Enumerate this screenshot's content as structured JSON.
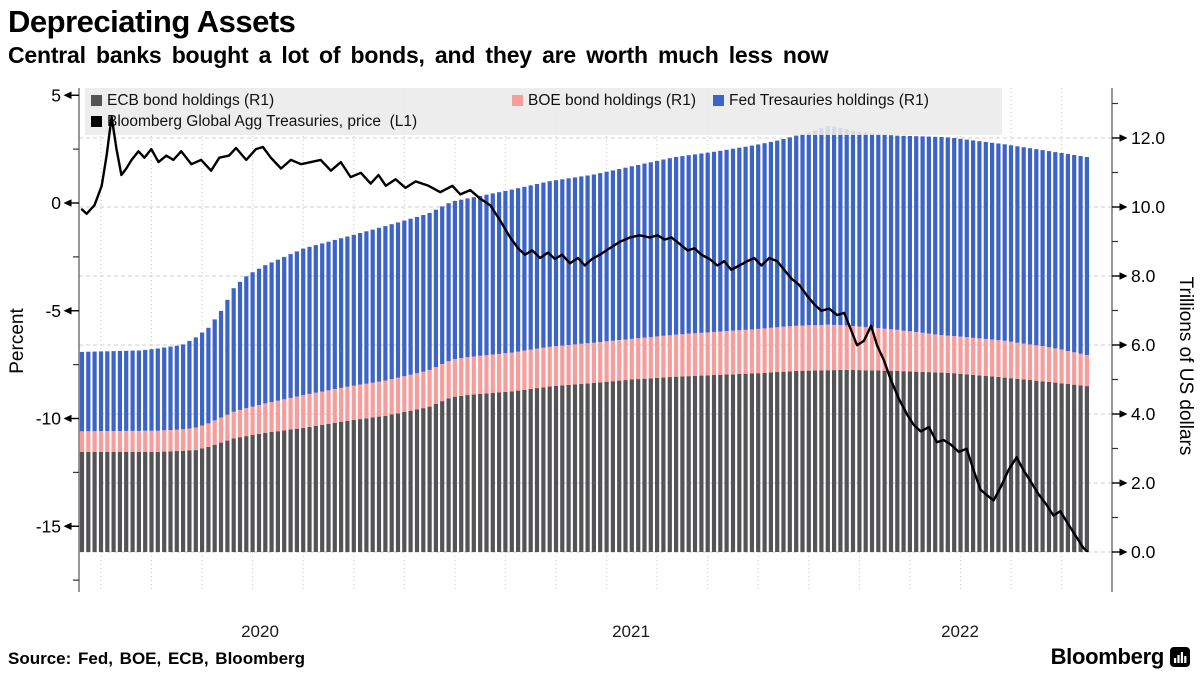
{
  "header": {
    "title": "Depreciating Assets",
    "subtitle": "Central banks bought a lot of bonds, and they are worth much less now"
  },
  "footer": {
    "source": "Source: Fed, BOE, ECB, Bloomberg",
    "brand": "Bloomberg",
    "brand_icon": "bar-chart-glyph"
  },
  "legend": {
    "items": [
      {
        "label": "ECB bond holdings (R1)",
        "color": "#545457",
        "kind": "bar"
      },
      {
        "label": "BOE bond holdings (R1)",
        "color": "#F79E9D",
        "kind": "bar"
      },
      {
        "label": "Fed Tresauries holdings (R1)",
        "color": "#3C63C7",
        "kind": "bar"
      },
      {
        "label": "Bloomberg Global Agg Treasuries, price  (L1)",
        "color": "#000000",
        "kind": "line"
      }
    ]
  },
  "chart_data": {
    "type": "combo-stacked-bar-and-line",
    "bar_frequency": "weekly",
    "time_range": {
      "start_decimal_year": 2019.825,
      "end_decimal_year": 2022.885,
      "start": "Nov 2019",
      "end": "Nov 2022"
    },
    "x_axis": {
      "labels": [
        "2020",
        "2021",
        "2022"
      ]
    },
    "left_axis": {
      "title": "Percent",
      "ticks": [
        5,
        0,
        -5,
        -10,
        -15
      ],
      "minor_ticks": [
        2.5,
        -2.5,
        -7.5,
        -12.5,
        -17.5
      ],
      "range": [
        -18.5,
        5.4
      ]
    },
    "right_axis": {
      "title": "Trillions of US dollars",
      "ticks": [
        12,
        10,
        8,
        6,
        4,
        2,
        0
      ],
      "minor_ticks": [
        13,
        11,
        9,
        7,
        5,
        3,
        1
      ],
      "tick_format": "0.0",
      "range": [
        0,
        13.45
      ]
    },
    "grid": {
      "horizontal_at_right_ticks": true,
      "vertical_every_n_bars": 8,
      "color": "#cfcfcf"
    },
    "bar_series": [
      {
        "name": "ECB bond holdings (R1)",
        "axis": "R1",
        "color": "#545457",
        "unit": "trillion USD",
        "keyframes": [
          [
            2019.825,
            2.9
          ],
          [
            2020.05,
            2.9
          ],
          [
            2020.17,
            2.95
          ],
          [
            2020.21,
            3.05
          ],
          [
            2020.29,
            3.3
          ],
          [
            2020.38,
            3.45
          ],
          [
            2020.5,
            3.6
          ],
          [
            2020.63,
            3.8
          ],
          [
            2020.75,
            3.95
          ],
          [
            2020.88,
            4.2
          ],
          [
            2020.95,
            4.49
          ],
          [
            2021.0,
            4.55
          ],
          [
            2021.13,
            4.65
          ],
          [
            2021.25,
            4.8
          ],
          [
            2021.38,
            4.9
          ],
          [
            2021.5,
            5.0
          ],
          [
            2021.63,
            5.08
          ],
          [
            2021.75,
            5.13
          ],
          [
            2021.88,
            5.18
          ],
          [
            2022.0,
            5.25
          ],
          [
            2022.15,
            5.28
          ],
          [
            2022.3,
            5.25
          ],
          [
            2022.47,
            5.19
          ],
          [
            2022.62,
            5.07
          ],
          [
            2022.77,
            4.93
          ],
          [
            2022.885,
            4.81
          ]
        ]
      },
      {
        "name": "BOE bond holdings (R1)",
        "axis": "R1",
        "color": "#F79E9D",
        "unit": "trillion USD",
        "keyframes": [
          [
            2019.825,
            0.6
          ],
          [
            2020.13,
            0.62
          ],
          [
            2020.21,
            0.68
          ],
          [
            2020.29,
            0.78
          ],
          [
            2020.38,
            0.85
          ],
          [
            2020.5,
            0.95
          ],
          [
            2020.75,
            1.02
          ],
          [
            2021.0,
            1.1
          ],
          [
            2021.25,
            1.15
          ],
          [
            2021.5,
            1.18
          ],
          [
            2021.75,
            1.25
          ],
          [
            2021.95,
            1.3
          ],
          [
            2022.1,
            1.32
          ],
          [
            2022.3,
            1.2
          ],
          [
            2022.45,
            1.08
          ],
          [
            2022.62,
            1.07
          ],
          [
            2022.77,
            1.01
          ],
          [
            2022.885,
            0.9
          ]
        ]
      },
      {
        "name": "Fed Tresauries holdings (R1)",
        "axis": "R1",
        "color": "#3C63C7",
        "unit": "trillion USD",
        "keyframes": [
          [
            2019.825,
            2.3
          ],
          [
            2020.0,
            2.33
          ],
          [
            2020.13,
            2.45
          ],
          [
            2020.21,
            2.77
          ],
          [
            2020.25,
            3.1
          ],
          [
            2020.29,
            3.62
          ],
          [
            2020.33,
            3.85
          ],
          [
            2020.38,
            4.0
          ],
          [
            2020.5,
            4.25
          ],
          [
            2020.63,
            4.35
          ],
          [
            2020.75,
            4.48
          ],
          [
            2020.88,
            4.55
          ],
          [
            2021.0,
            4.6
          ],
          [
            2021.13,
            4.72
          ],
          [
            2021.25,
            4.8
          ],
          [
            2021.38,
            4.87
          ],
          [
            2021.5,
            5.0
          ],
          [
            2021.63,
            5.15
          ],
          [
            2021.75,
            5.22
          ],
          [
            2021.88,
            5.34
          ],
          [
            2021.95,
            5.42
          ],
          [
            2022.04,
            5.59
          ],
          [
            2022.1,
            5.77
          ],
          [
            2022.18,
            5.65
          ],
          [
            2022.3,
            5.62
          ],
          [
            2022.45,
            5.75
          ],
          [
            2022.6,
            5.7
          ],
          [
            2022.77,
            5.68
          ],
          [
            2022.885,
            5.74
          ]
        ]
      }
    ],
    "line_series": {
      "name": "Bloomberg Global Agg Treasuries, price  (L1)",
      "axis": "L1",
      "color": "#000000",
      "unit": "percent",
      "points": [
        [
          2019.825,
          -0.3
        ],
        [
          2019.839,
          -0.5
        ],
        [
          2019.863,
          -0.1
        ],
        [
          2019.885,
          0.8
        ],
        [
          2019.9,
          2.2
        ],
        [
          2019.915,
          4.0
        ],
        [
          2019.93,
          2.5
        ],
        [
          2019.945,
          1.3
        ],
        [
          2019.96,
          1.6
        ],
        [
          2019.976,
          2.0
        ],
        [
          2019.997,
          2.4
        ],
        [
          2020.015,
          2.1
        ],
        [
          2020.036,
          2.5
        ],
        [
          2020.058,
          1.9
        ],
        [
          2020.082,
          2.2
        ],
        [
          2020.103,
          2.0
        ],
        [
          2020.127,
          2.4
        ],
        [
          2020.158,
          1.8
        ],
        [
          2020.188,
          2.0
        ],
        [
          2020.218,
          1.5
        ],
        [
          2020.243,
          2.1
        ],
        [
          2020.273,
          2.2
        ],
        [
          2020.294,
          2.55
        ],
        [
          2020.325,
          2.0
        ],
        [
          2020.355,
          2.5
        ],
        [
          2020.376,
          2.6
        ],
        [
          2020.4,
          2.1
        ],
        [
          2020.431,
          1.6
        ],
        [
          2020.461,
          2.0
        ],
        [
          2020.492,
          1.8
        ],
        [
          2020.522,
          1.9
        ],
        [
          2020.552,
          2.0
        ],
        [
          2020.583,
          1.5
        ],
        [
          2020.613,
          1.9
        ],
        [
          2020.643,
          1.2
        ],
        [
          2020.674,
          1.4
        ],
        [
          2020.704,
          0.9
        ],
        [
          2020.728,
          1.3
        ],
        [
          2020.75,
          0.8
        ],
        [
          2020.78,
          1.1
        ],
        [
          2020.81,
          0.7
        ],
        [
          2020.841,
          1.0
        ],
        [
          2020.88,
          0.8
        ],
        [
          2020.916,
          0.5
        ],
        [
          2020.953,
          0.8
        ],
        [
          2020.977,
          0.4
        ],
        [
          2021.007,
          0.6
        ],
        [
          2021.038,
          0.2
        ],
        [
          2021.068,
          -0.1
        ],
        [
          2021.098,
          -0.8
        ],
        [
          2021.129,
          -1.6
        ],
        [
          2021.153,
          -2.1
        ],
        [
          2021.174,
          -2.4
        ],
        [
          2021.196,
          -2.2
        ],
        [
          2021.22,
          -2.55
        ],
        [
          2021.244,
          -2.3
        ],
        [
          2021.265,
          -2.6
        ],
        [
          2021.287,
          -2.4
        ],
        [
          2021.311,
          -2.8
        ],
        [
          2021.335,
          -2.55
        ],
        [
          2021.356,
          -2.9
        ],
        [
          2021.378,
          -2.6
        ],
        [
          2021.402,
          -2.4
        ],
        [
          2021.432,
          -2.1
        ],
        [
          2021.463,
          -1.8
        ],
        [
          2021.493,
          -1.6
        ],
        [
          2021.523,
          -1.5
        ],
        [
          2021.554,
          -1.6
        ],
        [
          2021.578,
          -1.5
        ],
        [
          2021.599,
          -1.7
        ],
        [
          2021.62,
          -1.6
        ],
        [
          2021.645,
          -1.9
        ],
        [
          2021.669,
          -2.2
        ],
        [
          2021.69,
          -2.1
        ],
        [
          2021.711,
          -2.4
        ],
        [
          2021.736,
          -2.6
        ],
        [
          2021.76,
          -2.9
        ],
        [
          2021.781,
          -2.7
        ],
        [
          2021.802,
          -3.1
        ],
        [
          2021.827,
          -2.9
        ],
        [
          2021.851,
          -2.7
        ],
        [
          2021.872,
          -2.55
        ],
        [
          2021.894,
          -2.9
        ],
        [
          2021.918,
          -2.55
        ],
        [
          2021.942,
          -2.7
        ],
        [
          2021.963,
          -3.1
        ],
        [
          2021.985,
          -3.5
        ],
        [
          2022.009,
          -3.8
        ],
        [
          2022.033,
          -4.3
        ],
        [
          2022.055,
          -4.7
        ],
        [
          2022.076,
          -5.0
        ],
        [
          2022.1,
          -4.9
        ],
        [
          2022.124,
          -5.2
        ],
        [
          2022.146,
          -5.1
        ],
        [
          2022.167,
          -5.9
        ],
        [
          2022.185,
          -6.6
        ],
        [
          2022.206,
          -6.4
        ],
        [
          2022.228,
          -5.7
        ],
        [
          2022.246,
          -6.6
        ],
        [
          2022.267,
          -7.3
        ],
        [
          2022.288,
          -8.2
        ],
        [
          2022.313,
          -9.1
        ],
        [
          2022.337,
          -9.8
        ],
        [
          2022.358,
          -10.3
        ],
        [
          2022.379,
          -10.6
        ],
        [
          2022.404,
          -10.4
        ],
        [
          2022.428,
          -11.1
        ],
        [
          2022.449,
          -11.0
        ],
        [
          2022.47,
          -11.2
        ],
        [
          2022.495,
          -11.55
        ],
        [
          2022.519,
          -11.4
        ],
        [
          2022.54,
          -12.4
        ],
        [
          2022.561,
          -13.3
        ],
        [
          2022.58,
          -13.55
        ],
        [
          2022.601,
          -13.8
        ],
        [
          2022.622,
          -13.2
        ],
        [
          2022.646,
          -12.4
        ],
        [
          2022.671,
          -11.8
        ],
        [
          2022.692,
          -12.4
        ],
        [
          2022.713,
          -12.9
        ],
        [
          2022.737,
          -13.5
        ],
        [
          2022.762,
          -14.0
        ],
        [
          2022.783,
          -14.5
        ],
        [
          2022.804,
          -14.3
        ],
        [
          2022.828,
          -14.9
        ],
        [
          2022.853,
          -15.5
        ],
        [
          2022.874,
          -16.0
        ],
        [
          2022.885,
          -16.15
        ]
      ]
    }
  }
}
